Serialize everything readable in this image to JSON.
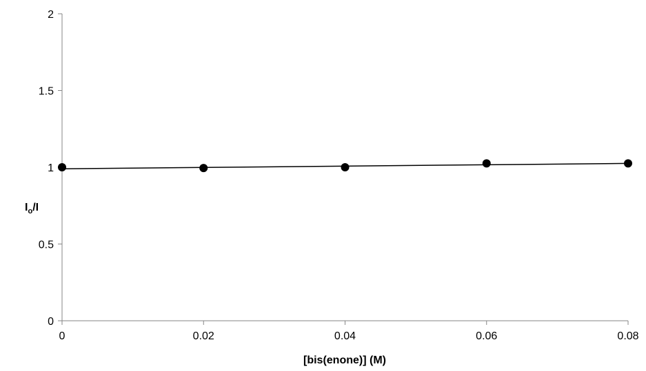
{
  "chart_data": {
    "type": "scatter",
    "title": "",
    "xlabel": "[bis(enone)] (M)",
    "ylabel_main": "I",
    "ylabel_sub": "o",
    "ylabel_tail": "/I",
    "xlim": [
      0,
      0.08
    ],
    "ylim": [
      0,
      2
    ],
    "x_ticks": [
      0,
      0.02,
      0.04,
      0.06,
      0.08
    ],
    "x_tick_labels": [
      "0",
      "0.02",
      "0.04",
      "0.06",
      "0.08"
    ],
    "y_ticks": [
      0,
      0.5,
      1,
      1.5,
      2
    ],
    "y_tick_labels": [
      "0",
      "0.5",
      "1",
      "1.5",
      "2"
    ],
    "grid": false,
    "legend": "none",
    "series": [
      {
        "x": [
          0,
          0.02,
          0.04,
          0.06,
          0.08
        ],
        "y": [
          1.0,
          0.995,
          1.0,
          1.025,
          1.025
        ],
        "color": "#000000",
        "marker": "circle"
      }
    ],
    "trendline": {
      "type": "linear",
      "x": [
        0,
        0.08
      ],
      "y": [
        0.99,
        1.025
      ],
      "color": "#000000"
    }
  }
}
